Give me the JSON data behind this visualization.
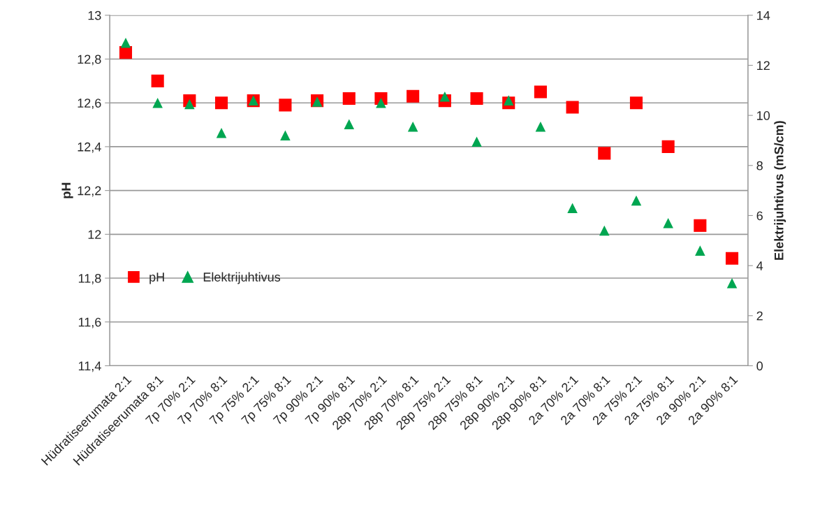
{
  "chart_data": {
    "type": "scatter",
    "categories": [
      "Hüdratiseerumata 2:1",
      "Hüdratiseerumata 8:1",
      "7p 70% 2:1",
      "7p 70% 8:1",
      "7p 75% 2:1",
      "7p 75% 8:1",
      "7p 90% 2:1",
      "7p 90% 8:1",
      "28p 70% 2:1",
      "28p 70% 8:1",
      "28p 75% 2:1",
      "28p 75% 8:1",
      "28p 90% 2:1",
      "28p 90% 8:1",
      "2a 70% 2:1",
      "2a 70% 8:1",
      "2a 75% 2:1",
      "2a 75% 8:1",
      "2a 90% 2:1",
      "2a 90% 8:1"
    ],
    "series": [
      {
        "name": "pH",
        "color": "#ff0000",
        "marker": "square",
        "values": [
          12.83,
          12.7,
          12.61,
          12.6,
          12.61,
          12.59,
          12.61,
          12.62,
          12.62,
          12.63,
          12.61,
          12.62,
          12.6,
          12.65,
          12.58,
          12.37,
          12.6,
          12.4,
          12.04,
          11.89
        ]
      },
      {
        "name": "Elektrijuhtivus",
        "color": "#00a651",
        "marker": "triangle",
        "axis": "y2",
        "values": [
          12.9,
          10.5,
          10.45,
          9.3,
          10.6,
          9.2,
          10.55,
          9.65,
          10.5,
          9.55,
          10.75,
          8.95,
          10.6,
          9.55,
          6.3,
          5.4,
          6.6,
          5.7,
          4.6,
          3.3
        ]
      }
    ],
    "ylabel": "pH",
    "y2label": "Elektrijuhtivus (mS/cm)",
    "ylim": [
      11.4,
      13
    ],
    "yticks": [
      {
        "value": 11.4,
        "label": "11,4"
      },
      {
        "value": 11.6,
        "label": "11,6"
      },
      {
        "value": 11.8,
        "label": "11,8"
      },
      {
        "value": 12,
        "label": "12"
      },
      {
        "value": 12.2,
        "label": "12,2"
      },
      {
        "value": 12.4,
        "label": "12,4"
      },
      {
        "value": 12.6,
        "label": "12,6"
      },
      {
        "value": 12.8,
        "label": "12,8"
      },
      {
        "value": 13,
        "label": "13"
      }
    ],
    "y2lim": [
      0,
      14
    ],
    "y2ticks": [
      0,
      2,
      4,
      6,
      8,
      10,
      12,
      14
    ],
    "grid": "y",
    "legend": "left"
  }
}
